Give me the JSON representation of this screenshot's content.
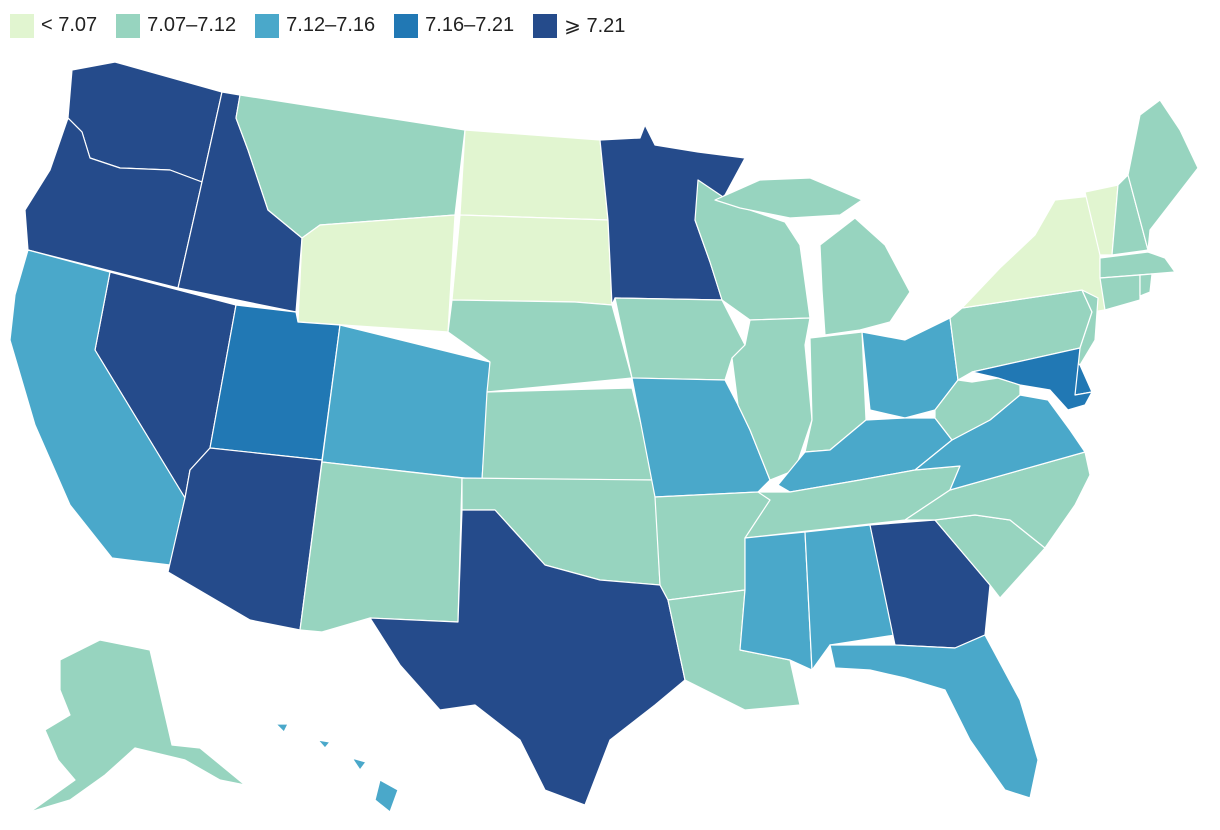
{
  "legend": {
    "bins": [
      {
        "label": "< 7.07",
        "color": "#e1f5d0"
      },
      {
        "label": "7.07–7.12",
        "color": "#97d4bf"
      },
      {
        "label": "7.12–7.16",
        "color": "#4aa8ca"
      },
      {
        "label": "7.16–7.21",
        "color": "#2178b4"
      },
      {
        "label": "⩾ 7.21",
        "color": "#254b8b"
      }
    ]
  },
  "chart_data": {
    "type": "choropleth",
    "region": "United States",
    "bin_edges": [
      7.07,
      7.12,
      7.16,
      7.21
    ],
    "states": {
      "WA": 4,
      "OR": 4,
      "ID": 4,
      "NV": 4,
      "AZ": 4,
      "TX": 4,
      "MN": 4,
      "GA": 4,
      "UT": 3,
      "MD": 3,
      "DE": 3,
      "CA": 2,
      "CO": 2,
      "MO": 2,
      "OH": 2,
      "KY": 2,
      "VA": 2,
      "MS": 2,
      "AL": 2,
      "FL": 2,
      "HI": 2,
      "MT": 1,
      "NE": 1,
      "KS": 1,
      "OK": 1,
      "NM": 1,
      "AR": 1,
      "LA": 1,
      "IA": 1,
      "WI": 1,
      "IL": 1,
      "IN": 1,
      "MI": 1,
      "TN": 1,
      "NC": 1,
      "SC": 1,
      "WV": 1,
      "PA": 1,
      "NJ": 1,
      "ME": 1,
      "NH": 1,
      "MA": 1,
      "CT": 1,
      "RI": 1,
      "AK": 1,
      "WY": 0,
      "ND": 0,
      "SD": 0,
      "NY": 0,
      "VT": 0
    }
  }
}
